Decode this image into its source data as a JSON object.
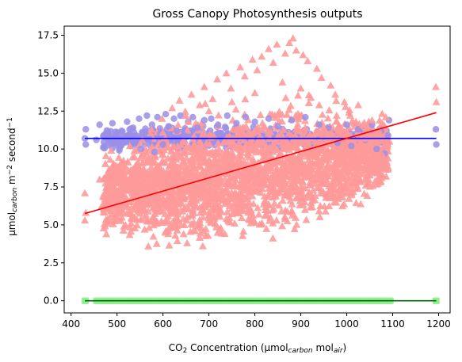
{
  "chart_data": {
    "type": "scatter",
    "title": "Gross Canopy Photosynthesis outputs",
    "xlabel": {
      "parts": [
        {
          "t": "CO",
          "s": "n"
        },
        {
          "t": "2",
          "s": "sub"
        },
        {
          "t": " Concentration (µmol",
          "s": "n"
        },
        {
          "t": "carbon",
          "s": "sub-i"
        },
        {
          "t": " mol",
          "s": "n"
        },
        {
          "t": "air",
          "s": "sub-i"
        },
        {
          "t": ")",
          "s": "n"
        }
      ]
    },
    "ylabel": {
      "parts": [
        {
          "t": "µmol",
          "s": "n"
        },
        {
          "t": "carbon",
          "s": "sub-i"
        },
        {
          "t": " m",
          "s": "n"
        },
        {
          "t": "−2",
          "s": "sup"
        },
        {
          "t": " second",
          "s": "n"
        },
        {
          "t": "−1",
          "s": "sup"
        }
      ]
    },
    "xlim": [
      385,
      1225
    ],
    "ylim": [
      -0.8,
      18.1
    ],
    "xticks": [
      400,
      500,
      600,
      700,
      800,
      900,
      1000,
      1100,
      1200
    ],
    "yticks": [
      0.0,
      2.5,
      5.0,
      7.5,
      10.0,
      12.5,
      15.0,
      17.5
    ],
    "ytick_labels": [
      "0.0",
      "2.5",
      "5.0",
      "7.5",
      "10.0",
      "12.5",
      "15.0",
      "17.5"
    ],
    "grid": false,
    "legend": "none",
    "series": [
      {
        "marker": "circle",
        "color": "#9b8fe6",
        "fit_color": "#0000ff",
        "fit": [
          [
            430,
            10.7
          ],
          [
            1195,
            10.7
          ]
        ],
        "points": [
          [
            430,
            10.7
          ],
          [
            432,
            11.3
          ],
          [
            432,
            10.3
          ],
          [
            455,
            10.6
          ],
          [
            462,
            11.6
          ],
          [
            470,
            10.1
          ],
          [
            478,
            11.0
          ],
          [
            485,
            10.4
          ],
          [
            490,
            11.7
          ],
          [
            498,
            10.8
          ],
          [
            505,
            9.9
          ],
          [
            510,
            11.2
          ],
          [
            518,
            10.5
          ],
          [
            522,
            11.8
          ],
          [
            530,
            10.2
          ],
          [
            535,
            11.4
          ],
          [
            540,
            10.7
          ],
          [
            548,
            12.0
          ],
          [
            552,
            10.0
          ],
          [
            558,
            11.1
          ],
          [
            565,
            12.2
          ],
          [
            570,
            10.6
          ],
          [
            576,
            11.6
          ],
          [
            582,
            9.8
          ],
          [
            588,
            12.1
          ],
          [
            594,
            11.0
          ],
          [
            600,
            10.3
          ],
          [
            606,
            12.3
          ],
          [
            612,
            11.5
          ],
          [
            618,
            10.8
          ],
          [
            624,
            12.0
          ],
          [
            630,
            11.2
          ],
          [
            638,
            12.2
          ],
          [
            646,
            10.9
          ],
          [
            655,
            11.8
          ],
          [
            665,
            12.1
          ],
          [
            675,
            11.4
          ],
          [
            690,
            11.9
          ],
          [
            705,
            12.0
          ],
          [
            720,
            11.6
          ],
          [
            740,
            12.2
          ],
          [
            760,
            11.7
          ],
          [
            780,
            12.1
          ],
          [
            800,
            11.8
          ],
          [
            830,
            12.0
          ],
          [
            850,
            11.5
          ],
          [
            880,
            11.9
          ],
          [
            910,
            12.1
          ],
          [
            940,
            11.6
          ],
          [
            960,
            11.4
          ],
          [
            980,
            10.4
          ],
          [
            1000,
            11.6
          ],
          [
            1010,
            10.2
          ],
          [
            1025,
            11.3
          ],
          [
            1040,
            10.6
          ],
          [
            1055,
            11.6
          ],
          [
            1065,
            10.0
          ],
          [
            1075,
            11.2
          ],
          [
            1082,
            9.7
          ],
          [
            1090,
            10.9
          ],
          [
            1092,
            11.9
          ],
          [
            1194,
            11.3
          ],
          [
            1195,
            10.3
          ]
        ]
      },
      {
        "marker": "triangle",
        "color": "#ff9a9a",
        "fit_color": "#ff0000",
        "fit": [
          [
            430,
            5.75
          ],
          [
            1195,
            12.4
          ]
        ],
        "points": [
          [
            430,
            7.1
          ],
          [
            430,
            5.3
          ],
          [
            432,
            5.8
          ],
          [
            462,
            8.0
          ],
          [
            466,
            6.2
          ],
          [
            478,
            7.5
          ],
          [
            485,
            9.3
          ],
          [
            490,
            5.7
          ],
          [
            496,
            8.4
          ],
          [
            505,
            6.5
          ],
          [
            510,
            9.1
          ],
          [
            515,
            4.9
          ],
          [
            520,
            7.8
          ],
          [
            528,
            10.2
          ],
          [
            532,
            5.4
          ],
          [
            540,
            8.9
          ],
          [
            548,
            6.1
          ],
          [
            555,
            10.6
          ],
          [
            560,
            4.7
          ],
          [
            568,
            9.4
          ],
          [
            575,
            11.3
          ],
          [
            582,
            5.2
          ],
          [
            590,
            8.1
          ],
          [
            598,
            12.0
          ],
          [
            605,
            4.5
          ],
          [
            612,
            10.1
          ],
          [
            620,
            12.7
          ],
          [
            628,
            5.0
          ],
          [
            636,
            13.2
          ],
          [
            645,
            4.4
          ],
          [
            655,
            11.8
          ],
          [
            662,
            13.6
          ],
          [
            670,
            4.6
          ],
          [
            680,
            12.9
          ],
          [
            690,
            14.1
          ],
          [
            698,
            4.3
          ],
          [
            708,
            13.3
          ],
          [
            718,
            14.6
          ],
          [
            726,
            4.8
          ],
          [
            738,
            15.0
          ],
          [
            748,
            14.0
          ],
          [
            756,
            5.1
          ],
          [
            768,
            15.4
          ],
          [
            778,
            14.8
          ],
          [
            786,
            5.4
          ],
          [
            795,
            15.9
          ],
          [
            805,
            15.2
          ],
          [
            815,
            16.1
          ],
          [
            822,
            5.6
          ],
          [
            830,
            16.6
          ],
          [
            840,
            15.7
          ],
          [
            848,
            16.9
          ],
          [
            858,
            5.9
          ],
          [
            866,
            16.3
          ],
          [
            875,
            17.0
          ],
          [
            883,
            17.3
          ],
          [
            890,
            16.5
          ],
          [
            898,
            6.3
          ],
          [
            905,
            16.2
          ],
          [
            915,
            15.8
          ],
          [
            925,
            6.6
          ],
          [
            935,
            15.3
          ],
          [
            945,
            14.7
          ],
          [
            955,
            7.0
          ],
          [
            965,
            14.2
          ],
          [
            975,
            13.6
          ],
          [
            985,
            7.4
          ],
          [
            995,
            13.1
          ],
          [
            1005,
            12.4
          ],
          [
            1015,
            7.9
          ],
          [
            1025,
            12.9
          ],
          [
            1035,
            11.6
          ],
          [
            1045,
            8.3
          ],
          [
            1055,
            11.9
          ],
          [
            1062,
            8.8
          ],
          [
            1070,
            11.2
          ],
          [
            1078,
            9.6
          ],
          [
            1085,
            12.1
          ],
          [
            1088,
            9.1
          ],
          [
            1093,
            10.5
          ],
          [
            1194,
            14.1
          ],
          [
            1195,
            13.1
          ],
          [
            560,
            8.3
          ],
          [
            580,
            6.9
          ],
          [
            610,
            7.7
          ],
          [
            640,
            6.4
          ],
          [
            660,
            9.8
          ],
          [
            700,
            7.2
          ],
          [
            720,
            10.4
          ],
          [
            760,
            8.6
          ],
          [
            790,
            11.1
          ],
          [
            820,
            9.3
          ],
          [
            850,
            12.3
          ],
          [
            880,
            10.2
          ],
          [
            910,
            9.7
          ],
          [
            950,
            11.4
          ],
          [
            980,
            10.8
          ],
          [
            1000,
            9.9
          ],
          [
            1040,
            10.7
          ],
          [
            600,
            11.1
          ],
          [
            650,
            12.2
          ],
          [
            700,
            12.5
          ],
          [
            750,
            13.1
          ],
          [
            800,
            13.7
          ],
          [
            860,
            14.4
          ],
          [
            900,
            14.0
          ],
          [
            940,
            12.9
          ],
          [
            1020,
            11.8
          ]
        ]
      },
      {
        "marker": "square",
        "color": "#90ee90",
        "fit_color": "#006400",
        "fit": [
          [
            430,
            0.0
          ],
          [
            1195,
            0.0
          ]
        ],
        "points": [
          [
            430,
            0.0
          ],
          [
            432,
            0.0
          ],
          [
            460,
            0.0
          ],
          [
            480,
            0.0
          ],
          [
            500,
            0.0
          ],
          [
            520,
            0.0
          ],
          [
            540,
            0.0
          ],
          [
            560,
            0.0
          ],
          [
            580,
            0.0
          ],
          [
            600,
            0.0
          ],
          [
            620,
            0.0
          ],
          [
            640,
            0.0
          ],
          [
            660,
            0.0
          ],
          [
            680,
            0.0
          ],
          [
            700,
            0.0
          ],
          [
            720,
            0.0
          ],
          [
            740,
            0.0
          ],
          [
            760,
            0.0
          ],
          [
            780,
            0.0
          ],
          [
            800,
            0.0
          ],
          [
            820,
            0.0
          ],
          [
            840,
            0.0
          ],
          [
            860,
            0.0
          ],
          [
            880,
            0.0
          ],
          [
            900,
            0.0
          ],
          [
            920,
            0.0
          ],
          [
            940,
            0.0
          ],
          [
            960,
            0.0
          ],
          [
            980,
            0.0
          ],
          [
            1000,
            0.0
          ],
          [
            1020,
            0.0
          ],
          [
            1040,
            0.0
          ],
          [
            1060,
            0.0
          ],
          [
            1080,
            0.0
          ],
          [
            1092,
            0.0
          ],
          [
            1194,
            0.0
          ],
          [
            1195,
            0.0
          ]
        ]
      }
    ],
    "density_regions": [
      {
        "series_index": 1,
        "x_range": [
          470,
          1090
        ],
        "y_center_at_xmin": 7.0,
        "y_center_at_xmax": 9.8,
        "y_spread": 2.6
      },
      {
        "series_index": 0,
        "x_range": [
          470,
          1090
        ],
        "y_center_at_xmin": 10.7,
        "y_center_at_xmax": 10.7,
        "y_spread": 0.8
      }
    ]
  }
}
